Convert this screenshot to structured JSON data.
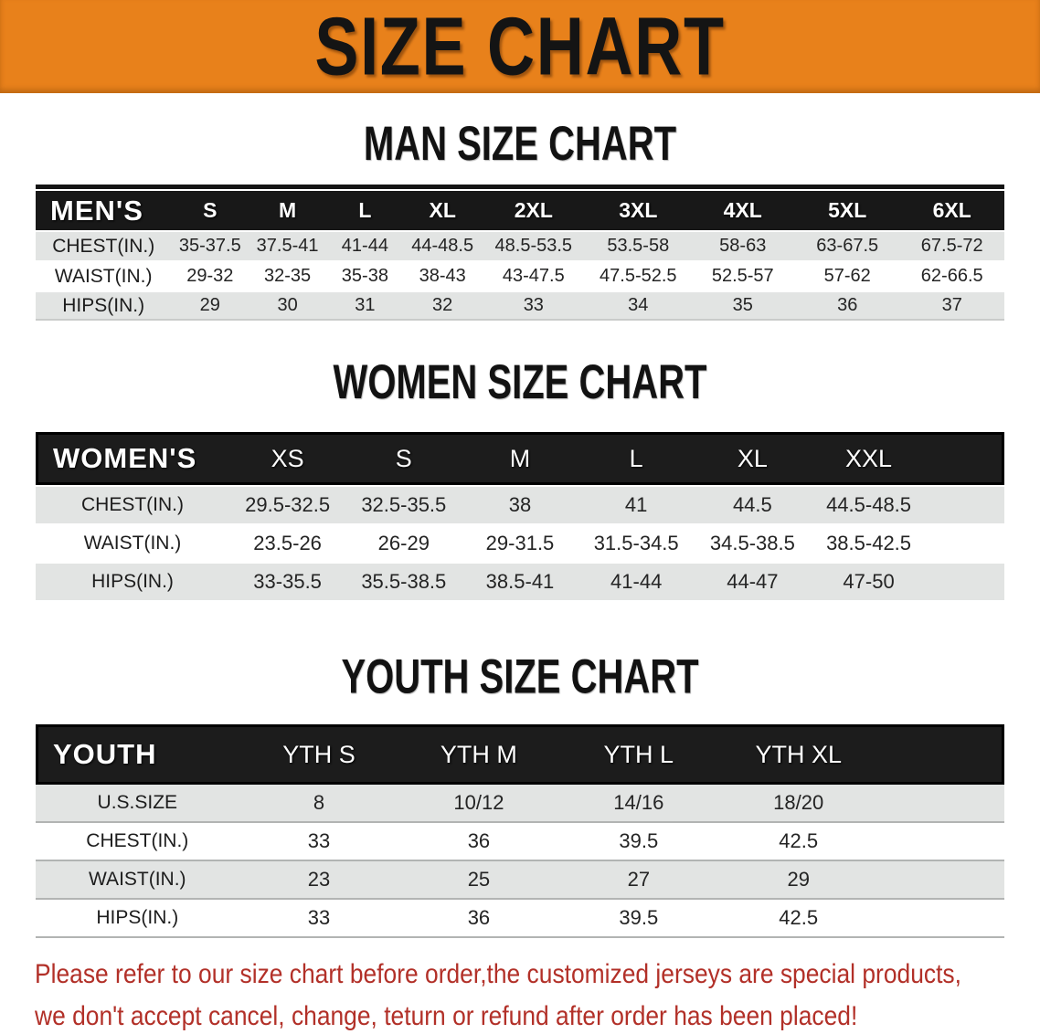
{
  "banner": {
    "title": "SIZE CHART",
    "bg_color": "#E8811B",
    "text_color": "#141414"
  },
  "sections": [
    {
      "heading": "MAN SIZE CHART",
      "table": {
        "header_label": "MEN'S",
        "columns": [
          "S",
          "M",
          "L",
          "XL",
          "2XL",
          "3XL",
          "4XL",
          "5XL",
          "6XL"
        ],
        "rows": [
          {
            "label": "CHEST(IN.)",
            "values": [
              "35-37.5",
              "37.5-41",
              "41-44",
              "44-48.5",
              "48.5-53.5",
              "53.5-58",
              "58-63",
              "63-67.5",
              "67.5-72"
            ]
          },
          {
            "label": "WAIST(IN.)",
            "values": [
              "29-32",
              "32-35",
              "35-38",
              "38-43",
              "43-47.5",
              "47.5-52.5",
              "52.5-57",
              "57-62",
              "62-66.5"
            ]
          },
          {
            "label": "HIPS(IN.)",
            "values": [
              "29",
              "30",
              "31",
              "32",
              "33",
              "34",
              "35",
              "36",
              "37"
            ]
          }
        ]
      }
    },
    {
      "heading": "WOMEN SIZE CHART",
      "table": {
        "header_label": "WOMEN'S",
        "columns": [
          "XS",
          "S",
          "M",
          "L",
          "XL",
          "XXL"
        ],
        "rows": [
          {
            "label": "CHEST(IN.)",
            "values": [
              "29.5-32.5",
              "32.5-35.5",
              "38",
              "41",
              "44.5",
              "44.5-48.5"
            ]
          },
          {
            "label": "WAIST(IN.)",
            "values": [
              "23.5-26",
              "26-29",
              "29-31.5",
              "31.5-34.5",
              "34.5-38.5",
              "38.5-42.5"
            ]
          },
          {
            "label": "HIPS(IN.)",
            "values": [
              "33-35.5",
              "35.5-38.5",
              "38.5-41",
              "41-44",
              "44-47",
              "47-50"
            ]
          }
        ]
      }
    },
    {
      "heading": "YOUTH SIZE CHART",
      "table": {
        "header_label": "YOUTH",
        "columns": [
          "YTH S",
          "YTH M",
          "YTH L",
          "YTH XL"
        ],
        "rows": [
          {
            "label": "U.S.SIZE",
            "values": [
              "8",
              "10/12",
              "14/16",
              "18/20"
            ]
          },
          {
            "label": "CHEST(IN.)",
            "values": [
              "33",
              "36",
              "39.5",
              "42.5"
            ]
          },
          {
            "label": "WAIST(IN.)",
            "values": [
              "23",
              "25",
              "27",
              "29"
            ]
          },
          {
            "label": "HIPS(IN.)",
            "values": [
              "33",
              "36",
              "39.5",
              "42.5"
            ]
          }
        ]
      }
    }
  ],
  "disclaimer": {
    "line1": "Please refer to our size chart before order,the customized jerseys are special products,",
    "line2": "we don't accept cancel, change, teturn or refund after order has been placed!",
    "text_color": "#B23028"
  }
}
